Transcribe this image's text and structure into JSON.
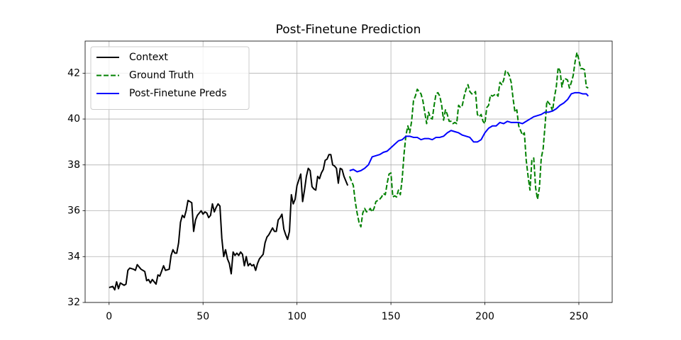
{
  "chart_data": {
    "type": "line",
    "title": "Post-Finetune Prediction",
    "xlim": [
      -12.75,
      267.75
    ],
    "ylim": [
      32,
      43.4
    ],
    "xticks": [
      0,
      50,
      100,
      150,
      200,
      250
    ],
    "yticks": [
      32,
      34,
      36,
      38,
      40,
      42
    ],
    "grid": true,
    "legend": "upper left",
    "series": [
      {
        "name": "Context",
        "color": "#000000",
        "linestyle": "solid",
        "x": [
          0,
          2,
          3,
          4,
          5,
          6,
          8,
          9,
          10,
          11,
          13,
          14,
          15,
          17,
          19,
          20,
          21,
          22,
          23,
          25,
          26,
          27,
          29,
          30,
          32,
          33,
          34,
          35,
          36,
          37,
          38,
          39,
          40,
          41,
          42,
          43,
          44,
          45,
          46,
          47,
          48,
          49,
          50,
          51,
          52,
          53,
          54,
          55,
          56,
          57,
          58,
          59,
          60,
          61,
          62,
          63,
          64,
          65,
          66,
          67,
          68,
          69,
          70,
          71,
          72,
          73,
          74,
          75,
          76,
          77,
          78,
          79,
          80,
          81,
          82,
          83,
          84,
          85,
          86,
          87,
          88,
          89,
          90,
          91,
          92,
          93,
          94,
          95,
          96,
          97,
          98,
          99,
          100,
          101,
          102,
          103,
          104,
          105,
          106,
          107,
          108,
          109,
          110,
          111,
          112,
          113,
          114,
          115,
          116,
          117,
          118,
          119,
          120,
          121,
          122,
          123,
          124,
          125,
          126,
          127
        ],
        "values": [
          32.65,
          32.7,
          32.55,
          32.9,
          32.6,
          32.85,
          32.75,
          32.8,
          33.4,
          33.5,
          33.45,
          33.4,
          33.65,
          33.45,
          33.35,
          32.95,
          33.0,
          32.85,
          33.0,
          32.8,
          33.2,
          33.15,
          33.6,
          33.4,
          33.45,
          34.05,
          34.3,
          34.15,
          34.15,
          34.6,
          35.5,
          35.8,
          35.7,
          36.0,
          36.45,
          36.4,
          36.35,
          35.1,
          35.6,
          35.8,
          35.9,
          36.0,
          35.85,
          35.95,
          35.9,
          35.7,
          35.8,
          36.3,
          35.95,
          36.15,
          36.3,
          36.2,
          34.8,
          34.0,
          34.3,
          33.9,
          33.7,
          33.25,
          34.2,
          34.05,
          34.15,
          34.05,
          34.2,
          34.1,
          33.6,
          34.0,
          33.6,
          33.7,
          33.6,
          33.65,
          33.4,
          33.7,
          33.9,
          34.0,
          34.1,
          34.6,
          34.85,
          34.95,
          35.1,
          35.25,
          35.1,
          35.1,
          35.6,
          35.7,
          35.85,
          35.2,
          34.95,
          34.75,
          35.1,
          36.7,
          36.3,
          36.5,
          37.1,
          37.35,
          37.6,
          36.4,
          36.9,
          37.5,
          37.85,
          37.75,
          37.05,
          36.95,
          36.9,
          37.5,
          37.4,
          37.65,
          37.8,
          38.2,
          38.25,
          38.45,
          38.45,
          38.0,
          37.95,
          37.85,
          37.2,
          37.85,
          37.8,
          37.5,
          37.3,
          37.1
        ]
      },
      {
        "name": "Ground Truth",
        "color": "#008000",
        "linestyle": "dashed",
        "x": [
          128,
          130,
          131,
          132,
          133,
          134,
          135,
          136,
          137,
          138,
          139,
          140,
          141,
          142,
          143,
          144,
          145,
          146,
          147,
          148,
          149,
          150,
          151,
          152,
          153,
          154,
          155,
          156,
          157,
          158,
          159,
          160,
          161,
          162,
          163,
          164,
          165,
          166,
          167,
          168,
          169,
          170,
          171,
          172,
          173,
          174,
          175,
          176,
          177,
          178,
          179,
          180,
          181,
          182,
          183,
          184,
          185,
          186,
          187,
          188,
          189,
          190,
          191,
          192,
          193,
          194,
          195,
          196,
          197,
          198,
          199,
          200,
          201,
          202,
          203,
          204,
          205,
          206,
          207,
          208,
          209,
          210,
          211,
          212,
          213,
          214,
          215,
          216,
          217,
          218,
          219,
          220,
          221,
          222,
          223,
          224,
          225,
          226,
          227,
          228,
          229,
          230,
          231,
          232,
          233,
          234,
          235,
          236,
          237,
          238,
          239,
          240,
          241,
          242,
          243,
          244,
          245,
          246,
          247,
          248,
          249,
          250,
          251,
          252,
          253,
          254,
          255
        ],
        "values": [
          37.5,
          37.1,
          36.4,
          35.9,
          35.5,
          35.3,
          35.9,
          36.1,
          35.95,
          36.0,
          36.1,
          35.95,
          36.1,
          36.4,
          36.45,
          36.5,
          36.6,
          36.75,
          36.7,
          37.2,
          37.6,
          37.65,
          36.6,
          36.65,
          36.6,
          36.9,
          36.7,
          37.4,
          38.5,
          39.3,
          39.7,
          39.4,
          39.9,
          40.8,
          41.0,
          41.3,
          41.2,
          41.1,
          40.8,
          40.3,
          39.8,
          40.3,
          40.05,
          40.0,
          40.6,
          41.1,
          41.15,
          41.0,
          40.6,
          39.95,
          40.4,
          40.2,
          39.9,
          39.9,
          39.8,
          39.85,
          39.8,
          40.6,
          40.5,
          40.6,
          41.0,
          41.3,
          41.5,
          41.2,
          41.1,
          41.1,
          41.2,
          40.2,
          40.1,
          40.2,
          39.9,
          39.8,
          40.5,
          40.6,
          41.05,
          41.0,
          41.05,
          41.1,
          41.0,
          41.6,
          41.5,
          41.7,
          42.1,
          42.05,
          41.9,
          41.6,
          40.9,
          40.3,
          40.4,
          39.7,
          39.5,
          39.3,
          39.4,
          38.2,
          37.5,
          36.9,
          38.2,
          38.3,
          37.0,
          36.5,
          37.0,
          38.3,
          38.7,
          39.7,
          40.8,
          40.7,
          40.6,
          40.35,
          40.95,
          41.4,
          42.25,
          42.1,
          41.4,
          41.75,
          41.75,
          41.7,
          41.35,
          41.6,
          41.9,
          42.5,
          42.9,
          42.6,
          42.2,
          42.2,
          42.15,
          41.4,
          41.35
        ]
      },
      {
        "name": "Post-Finetune Preds",
        "color": "#0000ff",
        "linestyle": "solid",
        "x": [
          128,
          130,
          132,
          134,
          136,
          138,
          140,
          142,
          144,
          146,
          148,
          150,
          152,
          154,
          156,
          158,
          160,
          162,
          164,
          166,
          168,
          170,
          172,
          174,
          176,
          178,
          180,
          182,
          184,
          186,
          188,
          190,
          192,
          194,
          196,
          198,
          200,
          202,
          204,
          206,
          208,
          210,
          212,
          214,
          216,
          218,
          220,
          222,
          224,
          226,
          228,
          230,
          232,
          234,
          236,
          238,
          240,
          242,
          244,
          246,
          248,
          250,
          252,
          254,
          255
        ],
        "values": [
          37.75,
          37.8,
          37.7,
          37.75,
          37.85,
          38.0,
          38.35,
          38.4,
          38.45,
          38.55,
          38.6,
          38.75,
          38.9,
          39.05,
          39.1,
          39.25,
          39.25,
          39.2,
          39.2,
          39.1,
          39.15,
          39.15,
          39.1,
          39.2,
          39.2,
          39.25,
          39.4,
          39.5,
          39.45,
          39.4,
          39.3,
          39.25,
          39.2,
          39.0,
          39.0,
          39.1,
          39.4,
          39.6,
          39.7,
          39.7,
          39.85,
          39.8,
          39.9,
          39.85,
          39.85,
          39.85,
          39.8,
          39.9,
          40.0,
          40.1,
          40.15,
          40.2,
          40.3,
          40.3,
          40.35,
          40.45,
          40.6,
          40.7,
          40.85,
          41.1,
          41.15,
          41.15,
          41.1,
          41.1,
          41.0
        ]
      }
    ]
  }
}
